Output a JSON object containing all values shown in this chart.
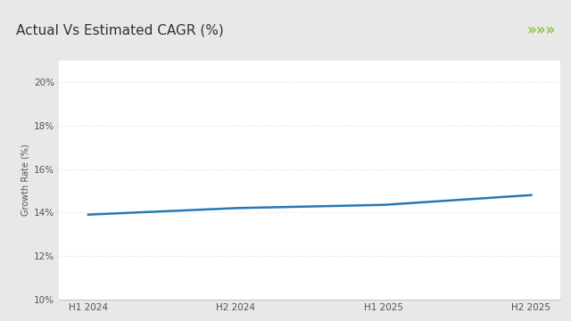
{
  "title": "Actual Vs Estimated CAGR (%)",
  "ylabel": "Growth Rate (%)",
  "x_labels": [
    "H1 2024",
    "H2 2024",
    "H1 2025",
    "H2 2025"
  ],
  "x_values": [
    0,
    1,
    2,
    3
  ],
  "y_values": [
    13.9,
    14.2,
    14.35,
    14.8
  ],
  "ylim": [
    10,
    21
  ],
  "yticks": [
    10,
    12,
    14,
    16,
    18,
    20
  ],
  "ytick_labels": [
    "10%",
    "12%",
    "14%",
    "16%",
    "18%",
    "20%"
  ],
  "line_color": "#2878b5",
  "line_width": 1.8,
  "background_color": "#e8e8e8",
  "plot_bg_color": "#ffffff",
  "title_fontsize": 11,
  "axis_label_fontsize": 7,
  "tick_label_fontsize": 7.5,
  "green_bar_color": "#8dc63f",
  "green_arrow_color": "#8dc63f",
  "title_color": "#333333",
  "grid_color": "#dddddd",
  "header_bg": "#ffffff",
  "arrow_symbol": "»»»"
}
